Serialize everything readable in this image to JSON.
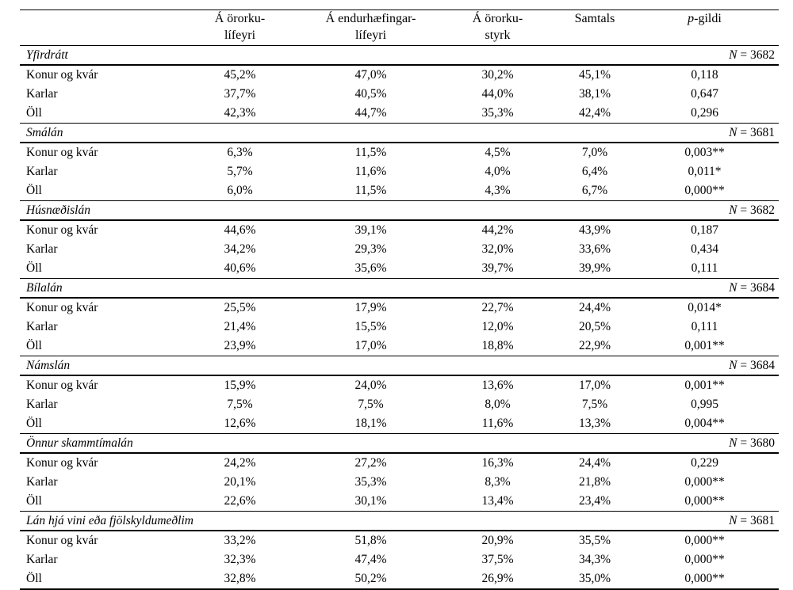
{
  "page": {
    "background": "#ffffff",
    "text_color": "#000000"
  },
  "table": {
    "header": {
      "col0": "",
      "col1": "Á örorku-\nlífeyri",
      "col2": "Á endurhæfingar-\nlífeyri",
      "col3": "Á örorku-\nstyrk",
      "col4": "Samtals",
      "p_italic": "p",
      "p_rest": "-gildi"
    },
    "sections": [
      {
        "title": "Yfirdrátt",
        "n_label": "N",
        "n_value": "= 3682",
        "rows": [
          {
            "label": "Konur og kvár",
            "values": [
              "45,2%",
              "47,0%",
              "30,2%",
              "45,1%",
              "0,118"
            ]
          },
          {
            "label": "Karlar",
            "values": [
              "37,7%",
              "40,5%",
              "44,0%",
              "38,1%",
              "0,647"
            ]
          },
          {
            "label": "Öll",
            "values": [
              "42,3%",
              "44,7%",
              "35,3%",
              "42,4%",
              "0,296"
            ]
          }
        ]
      },
      {
        "title": "Smálán",
        "n_label": "N",
        "n_value": "= 3681",
        "rows": [
          {
            "label": "Konur og kvár",
            "values": [
              "6,3%",
              "11,5%",
              "4,5%",
              "7,0%",
              "0,003**"
            ]
          },
          {
            "label": "Karlar",
            "values": [
              "5,7%",
              "11,6%",
              "4,0%",
              "6,4%",
              "0,011*"
            ]
          },
          {
            "label": "Öll",
            "values": [
              "6,0%",
              "11,5%",
              "4,3%",
              "6,7%",
              "0,000**"
            ]
          }
        ]
      },
      {
        "title": "Húsnæðislán",
        "n_label": "N",
        "n_value": "= 3682",
        "rows": [
          {
            "label": "Konur og kvár",
            "values": [
              "44,6%",
              "39,1%",
              "44,2%",
              "43,9%",
              "0,187"
            ]
          },
          {
            "label": "Karlar",
            "values": [
              "34,2%",
              "29,3%",
              "32,0%",
              "33,6%",
              "0,434"
            ]
          },
          {
            "label": "Öll",
            "values": [
              "40,6%",
              "35,6%",
              "39,7%",
              "39,9%",
              "0,111"
            ]
          }
        ]
      },
      {
        "title": "Bílalán",
        "n_label": "N",
        "n_value": "= 3684",
        "rows": [
          {
            "label": "Konur og kvár",
            "values": [
              "25,5%",
              "17,9%",
              "22,7%",
              "24,4%",
              "0,014*"
            ]
          },
          {
            "label": "Karlar",
            "values": [
              "21,4%",
              "15,5%",
              "12,0%",
              "20,5%",
              "0,111"
            ]
          },
          {
            "label": "Öll",
            "values": [
              "23,9%",
              "17,0%",
              "18,8%",
              "22,9%",
              "0,001**"
            ]
          }
        ]
      },
      {
        "title": "Námslán",
        "n_label": "N",
        "n_value": "= 3684",
        "rows": [
          {
            "label": "Konur og kvár",
            "values": [
              "15,9%",
              "24,0%",
              "13,6%",
              "17,0%",
              "0,001**"
            ]
          },
          {
            "label": "Karlar",
            "values": [
              "7,5%",
              "7,5%",
              "8,0%",
              "7,5%",
              "0,995"
            ]
          },
          {
            "label": "Öll",
            "values": [
              "12,6%",
              "18,1%",
              "11,6%",
              "13,3%",
              "0,004**"
            ]
          }
        ]
      },
      {
        "title": "Önnur skammtímalán",
        "n_label": "N",
        "n_value": "= 3680",
        "rows": [
          {
            "label": "Konur og kvár",
            "values": [
              "24,2%",
              "27,2%",
              "16,3%",
              "24,4%",
              "0,229"
            ]
          },
          {
            "label": "Karlar",
            "values": [
              "20,1%",
              "35,3%",
              "8,3%",
              "21,8%",
              "0,000**"
            ]
          },
          {
            "label": "Öll",
            "values": [
              "22,6%",
              "30,1%",
              "13,4%",
              "23,4%",
              "0,000**"
            ]
          }
        ]
      },
      {
        "title": "Lán hjá vini eða fjölskyldumeðlim",
        "n_label": "N",
        "n_value": "= 3681",
        "rows": [
          {
            "label": "Konur og kvár",
            "values": [
              "33,2%",
              "51,8%",
              "20,9%",
              "35,5%",
              "0,000**"
            ]
          },
          {
            "label": "Karlar",
            "values": [
              "32,3%",
              "47,4%",
              "37,5%",
              "34,3%",
              "0,000**"
            ]
          },
          {
            "label": "Öll",
            "values": [
              "32,8%",
              "50,2%",
              "26,9%",
              "35,0%",
              "0,000**"
            ]
          }
        ]
      }
    ]
  }
}
